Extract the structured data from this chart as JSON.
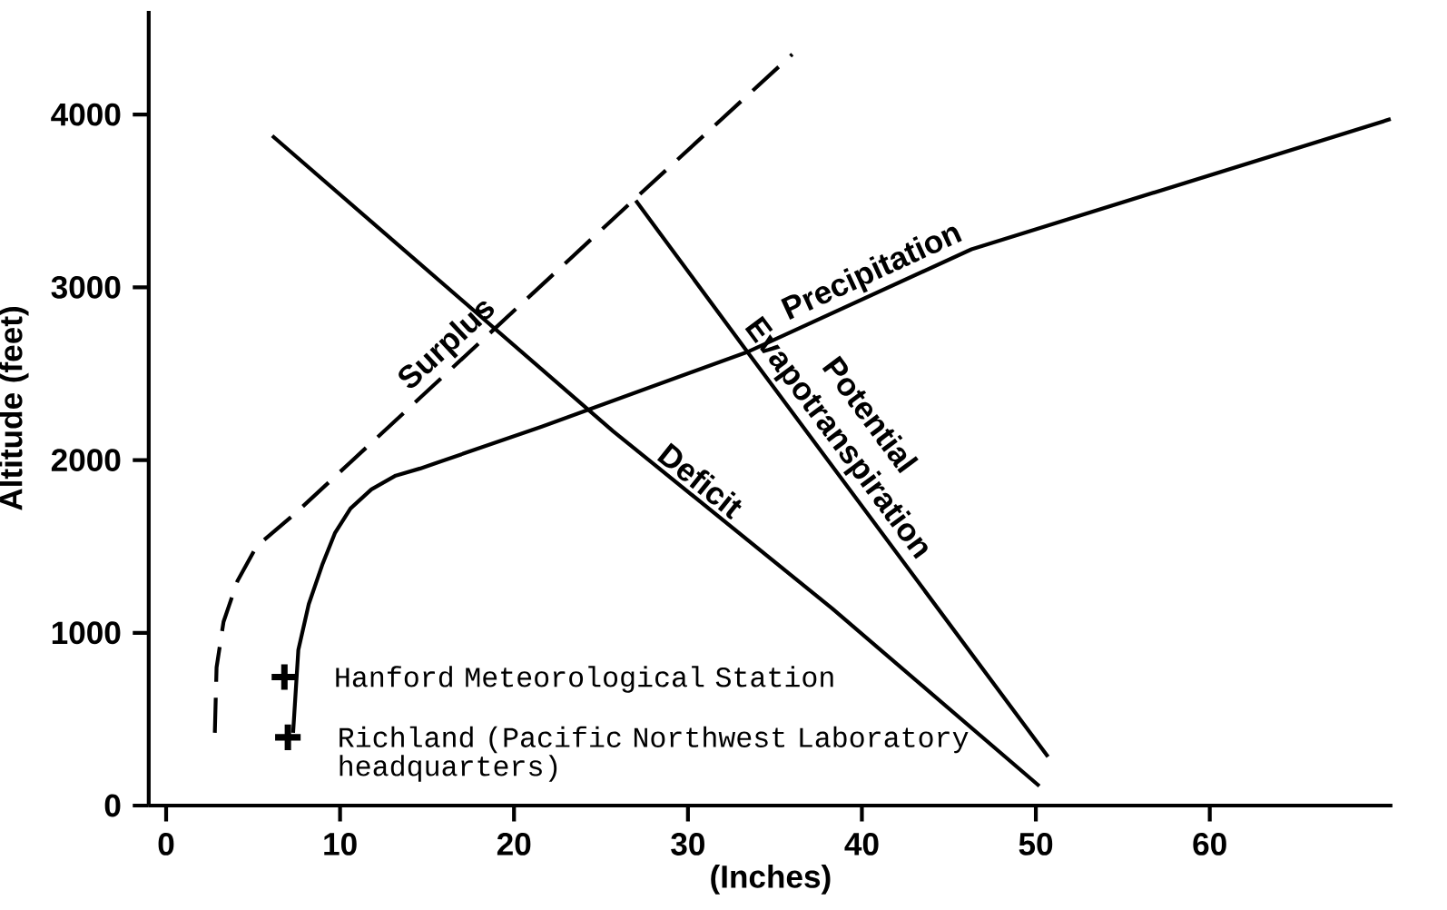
{
  "chart_data": {
    "type": "line",
    "xlabel": "(Inches)",
    "ylabel": "Altitude (feet)",
    "xlim": [
      -1,
      70.5
    ],
    "ylim": [
      0,
      4600
    ],
    "xticks": [
      0,
      10,
      20,
      30,
      40,
      50,
      60
    ],
    "yticks": [
      0,
      1000,
      2000,
      3000,
      4000
    ],
    "grid": false,
    "series": [
      {
        "name": "Surplus",
        "color": "#000000",
        "line_style": "dashed",
        "x": [
          2.8,
          2.9,
          3.3,
          4.1,
          5.2,
          7.4,
          27.0,
          36.0
        ],
        "values": [
          421,
          800,
          1063,
          1300,
          1500,
          1689,
          3517,
          4349
        ]
      },
      {
        "name": "Precipitation",
        "color": "#000000",
        "line_style": "solid",
        "x": [
          7.3,
          7.6,
          8.2,
          9.0,
          9.7,
          10.6,
          11.8,
          13.2,
          14.6,
          21.6,
          33.5,
          46.3,
          70.4
        ],
        "values": [
          421,
          900,
          1166,
          1400,
          1576,
          1720,
          1830,
          1910,
          1951,
          2193,
          2629,
          3220,
          3974
        ]
      },
      {
        "name": "Deficit",
        "color": "#000000",
        "line_style": "solid",
        "x": [
          6.1,
          25.7,
          38.3,
          50.2
        ],
        "values": [
          3877,
          2167,
          1140,
          113
        ]
      },
      {
        "name": "Potential Evapotranspiration",
        "color": "#000000",
        "line_style": "solid",
        "x": [
          27.0,
          33.4,
          50.7
        ],
        "values": [
          3502,
          2629,
          282
        ]
      },
      {
        "type": "scatter",
        "marker": "cross",
        "color": "#000000",
        "x": [
          6.8,
          7.0
        ],
        "values": [
          744,
          395
        ]
      }
    ],
    "annotations": [
      "Hanford Meteorological Station",
      "Richland (Pacific Northwest Laboratory headquarters)"
    ]
  }
}
